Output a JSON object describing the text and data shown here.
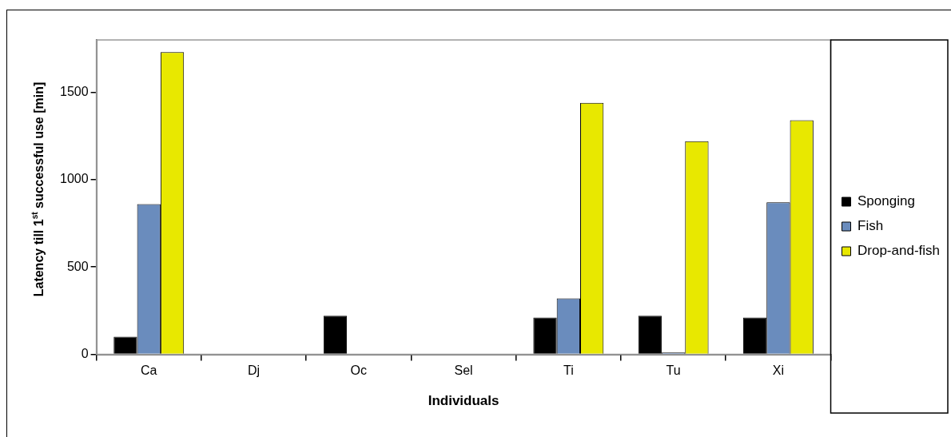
{
  "chart_data": {
    "type": "bar",
    "xlabel": "Individuals",
    "ylabel": "Latency till 1$^{st}$ successful use [min]",
    "categories": [
      "Ca",
      "Dj",
      "Oc",
      "Sel",
      "Ti",
      "Tu",
      "Xi"
    ],
    "series": [
      {
        "name": "Sponging",
        "color": "#000000",
        "values": [
          100,
          null,
          220,
          null,
          210,
          220,
          210
        ]
      },
      {
        "name": "Fish",
        "color": "#6a8cbd",
        "values": [
          860,
          null,
          null,
          null,
          320,
          10,
          870
        ]
      },
      {
        "name": "Drop-and-fish",
        "color": "#e8e800",
        "values": [
          1730,
          null,
          null,
          null,
          1440,
          1220,
          1340
        ]
      }
    ],
    "ylim": [
      0,
      1800
    ],
    "yticks": [
      0,
      500,
      1000,
      1500
    ],
    "grid": false,
    "legend": "right"
  }
}
